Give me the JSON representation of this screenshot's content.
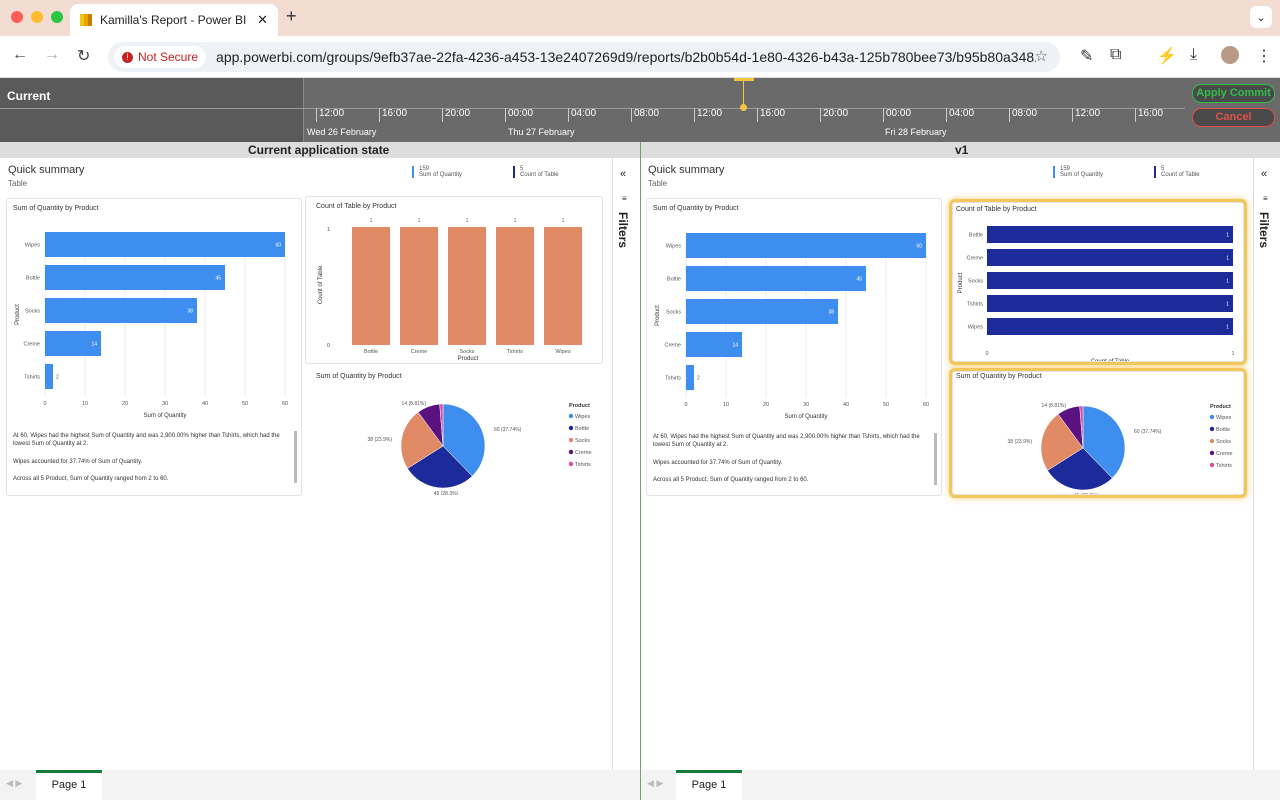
{
  "browser": {
    "tab_title": "Kamilla's Report - Power BI",
    "not_secure": "Not Secure",
    "url": "app.powerbi.com/groups/9efb37ae-22fa-4236-a453-13e2407269d9/reports/b2b0b54d-1e80-4326-b43a-125b780bee73/b95b80a348..."
  },
  "timeline": {
    "label": "Current",
    "ticks": [
      "12:00",
      "16:00",
      "20:00",
      "00:00",
      "04:00",
      "08:00",
      "12:00",
      "16:00",
      "20:00",
      "00:00",
      "04:00",
      "08:00",
      "12:00",
      "16:00"
    ],
    "dates": [
      "Wed 26 February",
      "Thu 27 February",
      "Fri 28 February"
    ],
    "apply": "Apply Commit",
    "cancel": "Cancel"
  },
  "headers": {
    "left": "Current application state",
    "right": "v1"
  },
  "report": {
    "title": "Quick summary",
    "subtitle": "Table",
    "kpi1_val": "159",
    "kpi1_lbl": "Sum of Quantity",
    "kpi2_val": "5",
    "kpi2_lbl": "Count of Table",
    "bar_title": "Sum of Quantity by Product",
    "col_title": "Count of Table by Product",
    "pie_title": "Sum of Quantity by Product",
    "ylabel_product": "Product",
    "xlabel_sum": "Sum of Quantity",
    "ylabel_count": "Count of Table",
    "xlabel_product": "Product",
    "xlabel_count": "Count of Table",
    "legend_title": "Product",
    "narrative1": "At 60, Wipes had the highest Sum of Quantity and was 2,900.00% higher than Tshirts, which had the lowest Sum of Quantity at 2.",
    "narrative2": "Wipes accounted for 37.74% of Sum of Quantity.",
    "narrative3": "Across all 5 Product, Sum of Quantity ranged from 2 to 60.",
    "pie_labels": [
      "60 (37.74%)",
      "45 (28.3%)",
      "38 (23.9%)",
      "14 (8.81%)"
    ]
  },
  "filters": {
    "label": "Filters",
    "collapse": "«",
    "icon": "≡"
  },
  "pages": {
    "page1": "Page 1"
  },
  "colors": {
    "blue": "#3e8ef0",
    "navy": "#1d2a9a",
    "orange": "#e08a66",
    "purple": "#5a1280",
    "pink": "#d84ca8",
    "highlight": "#f3c75a"
  },
  "chart_data": [
    {
      "type": "bar",
      "title": "Sum of Quantity by Product",
      "categories": [
        "Wipes",
        "Bottle",
        "Socks",
        "Creme",
        "Tshirts"
      ],
      "values": [
        60,
        45,
        38,
        14,
        2
      ],
      "xlabel": "Sum of Quantity",
      "ylabel": "Product",
      "xlim": [
        0,
        60
      ],
      "xticks": [
        0,
        10,
        20,
        30,
        40,
        50,
        60
      ]
    },
    {
      "type": "bar",
      "title": "Count of Table by Product",
      "categories": [
        "Bottle",
        "Creme",
        "Socks",
        "Tshirts",
        "Wipes"
      ],
      "values": [
        1,
        1,
        1,
        1,
        1
      ],
      "xlabel": "Product",
      "ylabel": "Count of Table",
      "ylim": [
        0,
        1
      ]
    },
    {
      "type": "pie",
      "title": "Sum of Quantity by Product",
      "categories": [
        "Wipes",
        "Bottle",
        "Socks",
        "Creme",
        "Tshirts"
      ],
      "values": [
        60,
        45,
        38,
        14,
        2
      ],
      "legend": "right"
    },
    {
      "type": "bar",
      "title": "Count of Table by Product",
      "categories": [
        "Bottle",
        "Creme",
        "Socks",
        "Tshirts",
        "Wipes"
      ],
      "values": [
        1,
        1,
        1,
        1,
        1
      ],
      "xlabel": "Count of Table",
      "ylabel": "Product",
      "xlim": [
        0,
        1
      ]
    }
  ]
}
